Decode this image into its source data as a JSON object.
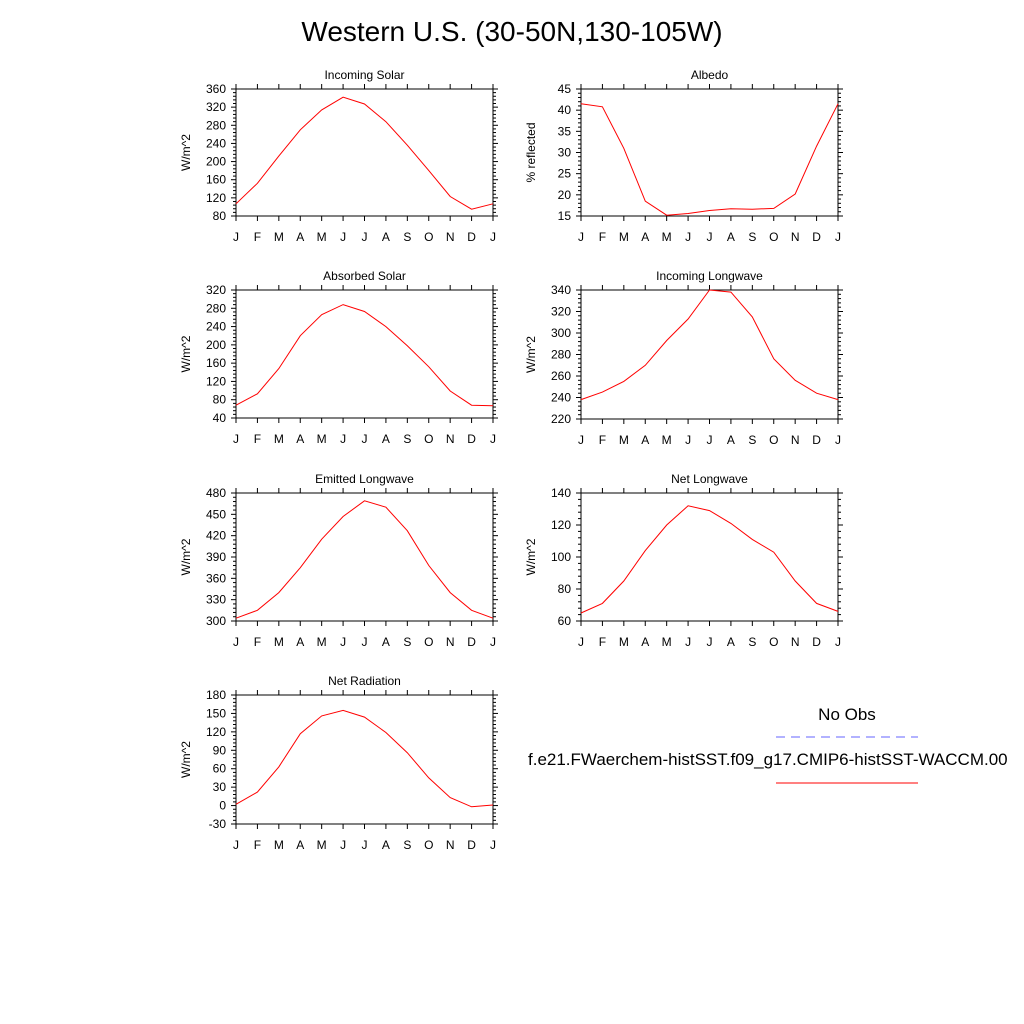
{
  "page_title": "Western U.S. (30-50N,130-105W)",
  "legend": {
    "obs_label": "No Obs",
    "case_label": "f.e21.FWaerchem-histSST.f09_g17.CMIP6-histSST-WACCM.00",
    "obs_color": "#6666ff",
    "case_color": "#ff0000"
  },
  "chart_data": [
    {
      "type": "line",
      "title": "Incoming Solar",
      "ylabel": "W/m^2",
      "ylim": [
        80,
        360
      ],
      "yticks": [
        80,
        120,
        160,
        200,
        240,
        280,
        320,
        360
      ],
      "x": [
        "J",
        "F",
        "M",
        "A",
        "M",
        "J",
        "J",
        "A",
        "S",
        "O",
        "N",
        "D",
        "J"
      ],
      "series": [
        {
          "color": "#ff0000",
          "values": [
            107,
            152,
            212,
            270,
            314,
            342,
            327,
            288,
            236,
            180,
            123,
            95,
            107
          ]
        }
      ]
    },
    {
      "type": "line",
      "title": "Albedo",
      "ylabel": "% reflected",
      "ylim": [
        15,
        45
      ],
      "yticks": [
        15,
        20,
        25,
        30,
        35,
        40,
        45
      ],
      "x": [
        "J",
        "F",
        "M",
        "A",
        "M",
        "J",
        "J",
        "A",
        "S",
        "O",
        "N",
        "D",
        "J"
      ],
      "series": [
        {
          "color": "#ff0000",
          "values": [
            41.5,
            40.8,
            31,
            18.5,
            15.2,
            15.6,
            16.3,
            16.7,
            16.6,
            16.8,
            20.2,
            31.5,
            41.5
          ]
        }
      ]
    },
    {
      "type": "line",
      "title": "Absorbed Solar",
      "ylabel": "W/m^2",
      "ylim": [
        40,
        320
      ],
      "yticks": [
        40,
        80,
        120,
        160,
        200,
        240,
        280,
        320
      ],
      "x": [
        "J",
        "F",
        "M",
        "A",
        "M",
        "J",
        "J",
        "A",
        "S",
        "O",
        "N",
        "D",
        "J"
      ],
      "series": [
        {
          "color": "#ff0000",
          "values": [
            68,
            93,
            148,
            220,
            266,
            288,
            273,
            240,
            198,
            152,
            99,
            68,
            67
          ]
        }
      ]
    },
    {
      "type": "line",
      "title": "Incoming Longwave",
      "ylabel": "W/m^2",
      "ylim": [
        220,
        340
      ],
      "yticks": [
        220,
        240,
        260,
        280,
        300,
        320,
        340
      ],
      "x": [
        "J",
        "F",
        "M",
        "A",
        "M",
        "J",
        "J",
        "A",
        "S",
        "O",
        "N",
        "D",
        "J"
      ],
      "series": [
        {
          "color": "#ff0000",
          "values": [
            238,
            245,
            255,
            270,
            293,
            313,
            340,
            338,
            315,
            276,
            256,
            244,
            238
          ]
        }
      ]
    },
    {
      "type": "line",
      "title": "Emitted Longwave",
      "ylabel": "W/m^2",
      "ylim": [
        300,
        480
      ],
      "yticks": [
        300,
        330,
        360,
        390,
        420,
        450,
        480
      ],
      "x": [
        "J",
        "F",
        "M",
        "A",
        "M",
        "J",
        "J",
        "A",
        "S",
        "O",
        "N",
        "D",
        "J"
      ],
      "series": [
        {
          "color": "#ff0000",
          "values": [
            304,
            315,
            340,
            375,
            415,
            447,
            469,
            460,
            427,
            378,
            340,
            315,
            304
          ]
        }
      ]
    },
    {
      "type": "line",
      "title": "Net Longwave",
      "ylabel": "W/m^2",
      "ylim": [
        60,
        140
      ],
      "yticks": [
        60,
        80,
        100,
        120,
        140
      ],
      "x": [
        "J",
        "F",
        "M",
        "A",
        "M",
        "J",
        "J",
        "A",
        "S",
        "O",
        "N",
        "D",
        "J"
      ],
      "series": [
        {
          "color": "#ff0000",
          "values": [
            65,
            71,
            85,
            104,
            120,
            132,
            129,
            121,
            111,
            103,
            85,
            71,
            66
          ]
        }
      ]
    },
    {
      "type": "line",
      "title": "Net Radiation",
      "ylabel": "W/m^2",
      "ylim": [
        -30,
        180
      ],
      "yticks": [
        -30,
        0,
        30,
        60,
        90,
        120,
        150,
        180
      ],
      "x": [
        "J",
        "F",
        "M",
        "A",
        "M",
        "J",
        "J",
        "A",
        "S",
        "O",
        "N",
        "D",
        "J"
      ],
      "series": [
        {
          "color": "#ff0000",
          "values": [
            2,
            22,
            63,
            117,
            146,
            155,
            144,
            119,
            86,
            45,
            13,
            -2,
            1
          ]
        }
      ]
    }
  ]
}
